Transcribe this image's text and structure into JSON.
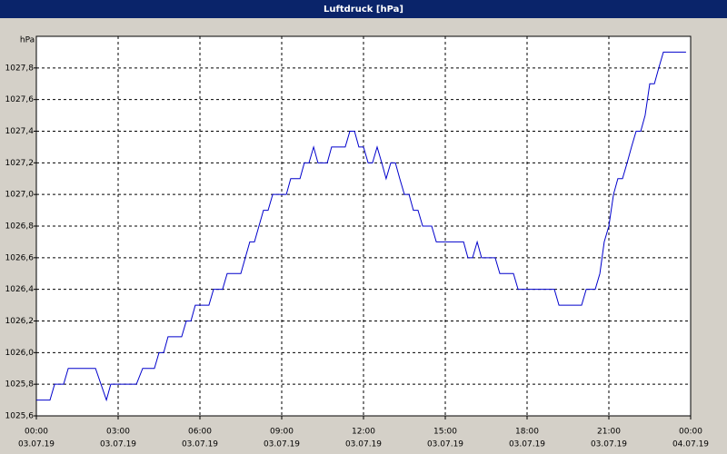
{
  "chart_data": {
    "type": "line",
    "title": "Luftdruck [hPa]",
    "y_label": "hPa",
    "x": [
      0,
      0.5,
      0.67,
      1.0,
      1.17,
      2.17,
      2.57,
      2.73,
      3.67,
      3.9,
      4.33,
      4.5,
      4.67,
      4.83,
      5.33,
      5.5,
      5.67,
      5.83,
      6.33,
      6.5,
      6.83,
      7.0,
      7.5,
      7.83,
      8.0,
      8.33,
      8.5,
      8.67,
      9.17,
      9.33,
      9.67,
      9.83,
      10.0,
      10.17,
      10.33,
      10.67,
      10.83,
      11.33,
      11.5,
      11.67,
      11.83,
      12.0,
      12.17,
      12.33,
      12.5,
      12.67,
      12.83,
      13.0,
      13.17,
      13.33,
      13.5,
      13.67,
      13.83,
      14.0,
      14.17,
      14.5,
      14.67,
      15.67,
      15.83,
      16.0,
      16.17,
      16.33,
      16.83,
      17.0,
      17.5,
      17.67,
      19.0,
      19.17,
      20.0,
      20.17,
      20.5,
      20.67,
      20.83,
      21.0,
      21.17,
      21.33,
      21.5,
      21.67,
      21.83,
      22.0,
      22.17,
      22.33,
      22.5,
      22.67,
      22.83,
      23.0,
      23.83
    ],
    "series": [
      {
        "name": "Luftdruck",
        "color": "#0000cc",
        "values": [
          1025.7,
          1025.7,
          1025.8,
          1025.8,
          1025.9,
          1025.9,
          1025.7,
          1025.8,
          1025.8,
          1025.9,
          1025.9,
          1026.0,
          1026.0,
          1026.1,
          1026.1,
          1026.2,
          1026.2,
          1026.3,
          1026.3,
          1026.4,
          1026.4,
          1026.5,
          1026.5,
          1026.7,
          1026.7,
          1026.9,
          1026.9,
          1027.0,
          1027.0,
          1027.1,
          1027.1,
          1027.2,
          1027.2,
          1027.3,
          1027.2,
          1027.2,
          1027.3,
          1027.3,
          1027.4,
          1027.4,
          1027.3,
          1027.3,
          1027.2,
          1027.2,
          1027.3,
          1027.2,
          1027.1,
          1027.2,
          1027.2,
          1027.1,
          1027.0,
          1027.0,
          1026.9,
          1026.9,
          1026.8,
          1026.8,
          1026.7,
          1026.7,
          1026.6,
          1026.6,
          1026.7,
          1026.6,
          1026.6,
          1026.5,
          1026.5,
          1026.4,
          1026.4,
          1026.3,
          1026.3,
          1026.4,
          1026.4,
          1026.5,
          1026.7,
          1026.8,
          1027.0,
          1027.1,
          1027.1,
          1027.2,
          1027.3,
          1027.4,
          1027.4,
          1027.5,
          1027.7,
          1027.7,
          1027.8,
          1027.9,
          1027.9
        ]
      }
    ],
    "xlim": [
      0,
      24
    ],
    "ylim": [
      1025.6,
      1028.0
    ],
    "xticks": [
      {
        "value": 0,
        "label": "00:00"
      },
      {
        "value": 3,
        "label": "03:00"
      },
      {
        "value": 6,
        "label": "06:00"
      },
      {
        "value": 9,
        "label": "09:00"
      },
      {
        "value": 12,
        "label": "12:00"
      },
      {
        "value": 15,
        "label": "15:00"
      },
      {
        "value": 18,
        "label": "18:00"
      },
      {
        "value": 21,
        "label": "21:00"
      },
      {
        "value": 24,
        "label": "00:00"
      }
    ],
    "xtick_dates": [
      "03.07.19",
      "03.07.19",
      "03.07.19",
      "03.07.19",
      "03.07.19",
      "03.07.19",
      "03.07.19",
      "03.07.19",
      "04.07.19"
    ],
    "yticks": [
      {
        "value": 1025.6,
        "label": "1025,6"
      },
      {
        "value": 1025.8,
        "label": "1025,8"
      },
      {
        "value": 1026.0,
        "label": "1026,0"
      },
      {
        "value": 1026.2,
        "label": "1026,2"
      },
      {
        "value": 1026.4,
        "label": "1026,4"
      },
      {
        "value": 1026.6,
        "label": "1026,6"
      },
      {
        "value": 1026.8,
        "label": "1026,8"
      },
      {
        "value": 1027.0,
        "label": "1027,0"
      },
      {
        "value": 1027.2,
        "label": "1027,2"
      },
      {
        "value": 1027.4,
        "label": "1027,4"
      },
      {
        "value": 1027.6,
        "label": "1027,6"
      },
      {
        "value": 1027.8,
        "label": "1027,8"
      }
    ],
    "grid": true
  }
}
